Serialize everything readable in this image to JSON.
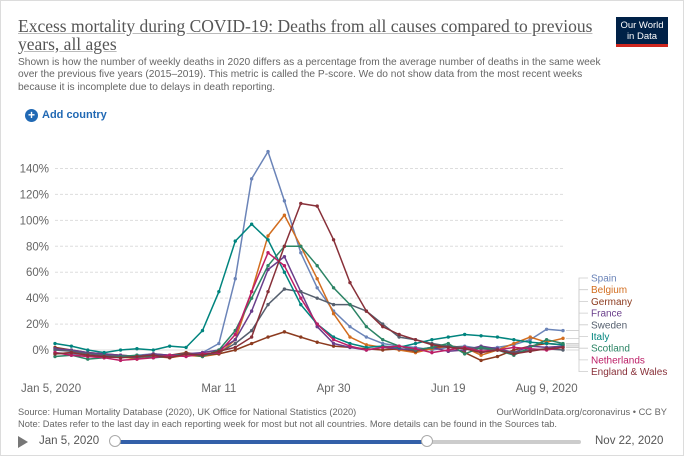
{
  "header": {
    "title": "Excess mortality during COVID-19: Deaths from all causes compared to previous years, all ages",
    "subtitle": "Shown is how the number of weekly deaths in 2020 differs as a percentage from the average number of deaths in the same week over the previous five years (2015–2019). This metric is called the P-score. We do not show data from the most recent weeks because it is incomplete due to delays in death reporting.",
    "logo_line1": "Our World",
    "logo_line2": "in Data"
  },
  "controls": {
    "add_country": "Add country",
    "add_icon": "+"
  },
  "footer": {
    "source": "Source: Human Mortality Database (2020), UK Office for National Statistics (2020)",
    "link": "OurWorldInData.org/coronavirus • CC BY",
    "note": "Note: Dates refer to the last day in each reporting week for most but not all countries. More details can be found in the Sources tab."
  },
  "timeline": {
    "start_label": "Jan 5, 2020",
    "end_label": "Nov 22, 2020",
    "range_start": 0.0,
    "range_end": 0.67
  },
  "colors": {
    "brand": "#002147",
    "accent": "#2169b4",
    "grid": "#dddddd"
  },
  "chart_data": {
    "type": "line",
    "y_tick_labels": [
      "0%",
      "20%",
      "40%",
      "60%",
      "80%",
      "100%",
      "120%",
      "140%"
    ],
    "x_tick_labels": [
      "Jan 5, 2020",
      "Mar 11",
      "Apr 30",
      "Jun 19",
      "Aug 9, 2020"
    ],
    "x_unit": "week number (week 1 = Jan 5, 2020)",
    "xlim": [
      1,
      32
    ],
    "ylim": [
      -10,
      155
    ],
    "grid": true,
    "legend_position": "right",
    "series": [
      {
        "name": "Spain",
        "color": "#6b84b8",
        "values": [
          [
            1,
            -2
          ],
          [
            2,
            -3
          ],
          [
            3,
            -5
          ],
          [
            4,
            -4
          ],
          [
            5,
            -6
          ],
          [
            6,
            -4
          ],
          [
            7,
            -3
          ],
          [
            8,
            -5
          ],
          [
            9,
            -4
          ],
          [
            10,
            -2
          ],
          [
            11,
            5
          ],
          [
            12,
            55
          ],
          [
            13,
            132
          ],
          [
            14,
            153
          ],
          [
            15,
            115
          ],
          [
            16,
            75
          ],
          [
            17,
            48
          ],
          [
            18,
            30
          ],
          [
            19,
            18
          ],
          [
            20,
            10
          ],
          [
            21,
            5
          ],
          [
            22,
            3
          ],
          [
            23,
            2
          ],
          [
            24,
            0
          ],
          [
            25,
            2
          ],
          [
            26,
            3
          ],
          [
            27,
            1
          ],
          [
            28,
            2
          ],
          [
            29,
            4
          ],
          [
            30,
            8
          ],
          [
            31,
            16
          ],
          [
            32,
            15
          ]
        ]
      },
      {
        "name": "Belgium",
        "color": "#d26d1f",
        "values": [
          [
            1,
            -3
          ],
          [
            2,
            -2
          ],
          [
            3,
            -4
          ],
          [
            4,
            -6
          ],
          [
            5,
            -5
          ],
          [
            6,
            -7
          ],
          [
            7,
            -5
          ],
          [
            8,
            -6
          ],
          [
            9,
            -4
          ],
          [
            10,
            -5
          ],
          [
            11,
            -3
          ],
          [
            12,
            8
          ],
          [
            13,
            45
          ],
          [
            14,
            88
          ],
          [
            15,
            104
          ],
          [
            16,
            80
          ],
          [
            17,
            55
          ],
          [
            18,
            28
          ],
          [
            19,
            10
          ],
          [
            20,
            4
          ],
          [
            21,
            2
          ],
          [
            22,
            0
          ],
          [
            23,
            -2
          ],
          [
            24,
            1
          ],
          [
            25,
            3
          ],
          [
            26,
            2
          ],
          [
            27,
            -4
          ],
          [
            28,
            0
          ],
          [
            29,
            5
          ],
          [
            30,
            10
          ],
          [
            31,
            6
          ],
          [
            32,
            9
          ]
        ]
      },
      {
        "name": "Germany",
        "color": "#8c3b1f",
        "values": [
          [
            1,
            2
          ],
          [
            2,
            0
          ],
          [
            3,
            -2
          ],
          [
            4,
            -3
          ],
          [
            5,
            -4
          ],
          [
            6,
            -5
          ],
          [
            7,
            -3
          ],
          [
            8,
            -4
          ],
          [
            9,
            -2
          ],
          [
            10,
            -4
          ],
          [
            11,
            -3
          ],
          [
            12,
            0
          ],
          [
            13,
            5
          ],
          [
            14,
            10
          ],
          [
            15,
            14
          ],
          [
            16,
            10
          ],
          [
            17,
            6
          ],
          [
            18,
            3
          ],
          [
            19,
            2
          ],
          [
            20,
            1
          ],
          [
            21,
            0
          ],
          [
            22,
            1
          ],
          [
            23,
            -1
          ],
          [
            24,
            2
          ],
          [
            25,
            3
          ],
          [
            26,
            -2
          ],
          [
            27,
            -8
          ],
          [
            28,
            -5
          ],
          [
            29,
            0
          ],
          [
            30,
            3
          ],
          [
            31,
            5
          ],
          [
            32,
            4
          ]
        ]
      },
      {
        "name": "France",
        "color": "#6a3e8b",
        "values": [
          [
            1,
            1
          ],
          [
            2,
            0
          ],
          [
            3,
            -2
          ],
          [
            4,
            -3
          ],
          [
            5,
            -4
          ],
          [
            6,
            -5
          ],
          [
            7,
            -3
          ],
          [
            8,
            -4
          ],
          [
            9,
            -3
          ],
          [
            10,
            -2
          ],
          [
            11,
            0
          ],
          [
            12,
            8
          ],
          [
            13,
            30
          ],
          [
            14,
            62
          ],
          [
            15,
            72
          ],
          [
            16,
            45
          ],
          [
            17,
            18
          ],
          [
            18,
            5
          ],
          [
            19,
            2
          ],
          [
            20,
            0
          ],
          [
            21,
            2
          ],
          [
            22,
            1
          ],
          [
            23,
            0
          ],
          [
            24,
            2
          ],
          [
            25,
            -1
          ],
          [
            26,
            0
          ],
          [
            27,
            3
          ],
          [
            28,
            1
          ],
          [
            29,
            -2
          ],
          [
            30,
            3
          ],
          [
            31,
            2
          ],
          [
            32,
            3
          ]
        ]
      },
      {
        "name": "Sweden",
        "color": "#555f6e",
        "values": [
          [
            1,
            0
          ],
          [
            2,
            -1
          ],
          [
            3,
            -3
          ],
          [
            4,
            -4
          ],
          [
            5,
            -5
          ],
          [
            6,
            -6
          ],
          [
            7,
            -4
          ],
          [
            8,
            -5
          ],
          [
            9,
            -3
          ],
          [
            10,
            -4
          ],
          [
            11,
            -2
          ],
          [
            12,
            5
          ],
          [
            13,
            15
          ],
          [
            14,
            35
          ],
          [
            15,
            47
          ],
          [
            16,
            45
          ],
          [
            17,
            40
          ],
          [
            18,
            35
          ],
          [
            19,
            35
          ],
          [
            20,
            30
          ],
          [
            21,
            20
          ],
          [
            22,
            10
          ],
          [
            23,
            8
          ],
          [
            24,
            5
          ],
          [
            25,
            3
          ],
          [
            26,
            2
          ],
          [
            27,
            1
          ],
          [
            28,
            0
          ],
          [
            29,
            -2
          ],
          [
            30,
            0
          ],
          [
            31,
            1
          ],
          [
            32,
            0
          ]
        ]
      },
      {
        "name": "Italy",
        "color": "#00847e",
        "values": [
          [
            1,
            5
          ],
          [
            2,
            3
          ],
          [
            3,
            0
          ],
          [
            4,
            -2
          ],
          [
            5,
            0
          ],
          [
            6,
            1
          ],
          [
            7,
            0
          ],
          [
            8,
            3
          ],
          [
            9,
            2
          ],
          [
            10,
            15
          ],
          [
            11,
            45
          ],
          [
            12,
            84
          ],
          [
            13,
            97
          ],
          [
            14,
            85
          ],
          [
            15,
            60
          ],
          [
            16,
            35
          ],
          [
            17,
            20
          ],
          [
            18,
            10
          ],
          [
            19,
            5
          ],
          [
            20,
            2
          ],
          [
            21,
            3
          ],
          [
            22,
            2
          ],
          [
            23,
            5
          ],
          [
            24,
            8
          ],
          [
            25,
            10
          ],
          [
            26,
            12
          ],
          [
            27,
            11
          ],
          [
            28,
            10
          ],
          [
            29,
            8
          ],
          [
            30,
            6
          ],
          [
            31,
            5
          ],
          [
            32,
            4
          ]
        ]
      },
      {
        "name": "Scotland",
        "color": "#2c8465",
        "values": [
          [
            1,
            -5
          ],
          [
            2,
            -4
          ],
          [
            3,
            -7
          ],
          [
            4,
            -6
          ],
          [
            5,
            -5
          ],
          [
            6,
            -4
          ],
          [
            7,
            -6
          ],
          [
            8,
            -5
          ],
          [
            9,
            -3
          ],
          [
            10,
            -5
          ],
          [
            11,
            0
          ],
          [
            12,
            15
          ],
          [
            13,
            40
          ],
          [
            14,
            65
          ],
          [
            15,
            80
          ],
          [
            16,
            80
          ],
          [
            17,
            65
          ],
          [
            18,
            48
          ],
          [
            19,
            35
          ],
          [
            20,
            18
          ],
          [
            21,
            8
          ],
          [
            22,
            3
          ],
          [
            23,
            0
          ],
          [
            24,
            2
          ],
          [
            25,
            5
          ],
          [
            26,
            -3
          ],
          [
            27,
            2
          ],
          [
            28,
            0
          ],
          [
            29,
            -4
          ],
          [
            30,
            2
          ],
          [
            31,
            8
          ],
          [
            32,
            5
          ]
        ]
      },
      {
        "name": "Netherlands",
        "color": "#bc1e66",
        "values": [
          [
            1,
            -2
          ],
          [
            2,
            -4
          ],
          [
            3,
            -5
          ],
          [
            4,
            -6
          ],
          [
            5,
            -8
          ],
          [
            6,
            -7
          ],
          [
            7,
            -6
          ],
          [
            8,
            -4
          ],
          [
            9,
            -5
          ],
          [
            10,
            -3
          ],
          [
            11,
            -2
          ],
          [
            12,
            12
          ],
          [
            13,
            45
          ],
          [
            14,
            75
          ],
          [
            15,
            65
          ],
          [
            16,
            40
          ],
          [
            17,
            20
          ],
          [
            18,
            8
          ],
          [
            19,
            3
          ],
          [
            20,
            0
          ],
          [
            21,
            2
          ],
          [
            22,
            3
          ],
          [
            23,
            1
          ],
          [
            24,
            -2
          ],
          [
            25,
            0
          ],
          [
            26,
            2
          ],
          [
            27,
            -1
          ],
          [
            28,
            0
          ],
          [
            29,
            2
          ],
          [
            30,
            1
          ],
          [
            31,
            0
          ],
          [
            32,
            2
          ]
        ]
      },
      {
        "name": "England & Wales",
        "color": "#883039",
        "values": [
          [
            1,
            -3
          ],
          [
            2,
            -2
          ],
          [
            3,
            -4
          ],
          [
            4,
            -5
          ],
          [
            5,
            -6
          ],
          [
            6,
            -5
          ],
          [
            7,
            -4
          ],
          [
            8,
            -6
          ],
          [
            9,
            -3
          ],
          [
            10,
            -4
          ],
          [
            11,
            -1
          ],
          [
            12,
            2
          ],
          [
            13,
            10
          ],
          [
            14,
            45
          ],
          [
            15,
            80
          ],
          [
            16,
            113
          ],
          [
            17,
            111
          ],
          [
            18,
            85
          ],
          [
            19,
            52
          ],
          [
            20,
            30
          ],
          [
            21,
            18
          ],
          [
            22,
            12
          ],
          [
            23,
            8
          ],
          [
            24,
            4
          ],
          [
            25,
            2
          ],
          [
            26,
            1
          ],
          [
            27,
            -2
          ],
          [
            28,
            0
          ],
          [
            29,
            -3
          ],
          [
            30,
            -1
          ],
          [
            31,
            1
          ],
          [
            32,
            2
          ]
        ]
      }
    ]
  }
}
